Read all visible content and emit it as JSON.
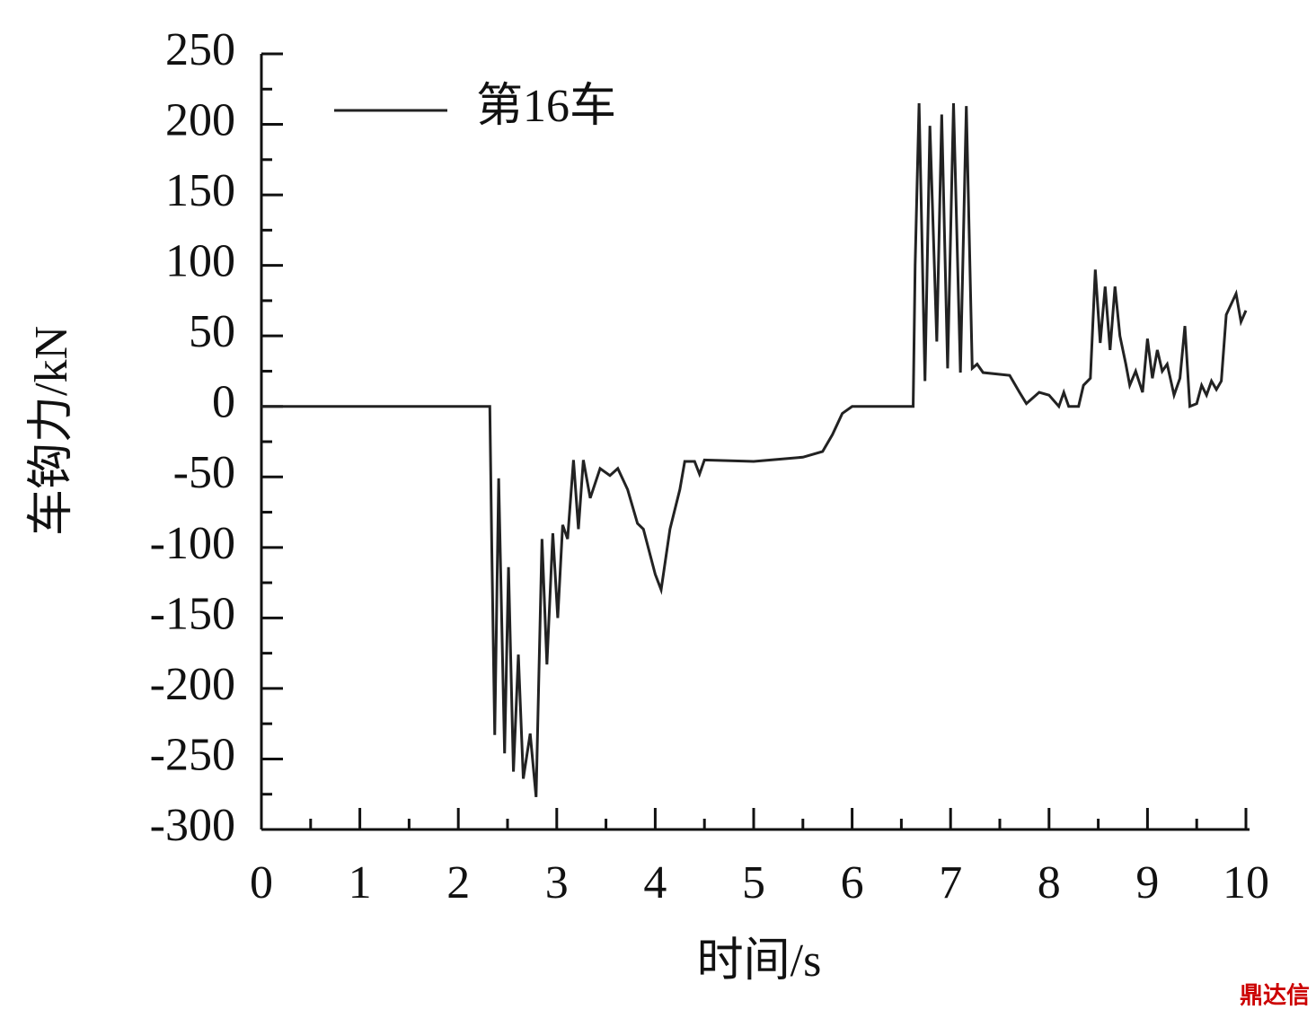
{
  "chart_data": {
    "type": "line",
    "x_label": "时间/s",
    "y_label": "车钩力/kN",
    "xlim": [
      0,
      10
    ],
    "xticks": [
      0,
      1,
      2,
      3,
      4,
      5,
      6,
      7,
      8,
      9,
      10
    ],
    "ylim": [
      -300,
      250
    ],
    "yticks": [
      -300,
      -250,
      -200,
      -150,
      -100,
      -50,
      0,
      50,
      100,
      150,
      200,
      250
    ],
    "x": [
      0,
      2.32,
      2.34,
      2.37,
      2.41,
      2.47,
      2.51,
      2.56,
      2.61,
      2.66,
      2.73,
      2.79,
      2.85,
      2.9,
      2.96,
      3.01,
      3.06,
      3.11,
      3.17,
      3.22,
      3.27,
      3.34,
      3.44,
      3.54,
      3.62,
      3.72,
      3.82,
      3.88,
      4.0,
      4.06,
      4.15,
      4.25,
      4.3,
      4.4,
      4.45,
      4.5,
      5.0,
      5.5,
      5.7,
      5.8,
      5.9,
      6.0,
      6.62,
      6.64,
      6.68,
      6.74,
      6.79,
      6.86,
      6.91,
      6.97,
      7.03,
      7.1,
      7.16,
      7.22,
      7.27,
      7.33,
      7.6,
      7.7,
      7.77,
      7.9,
      8.0,
      8.1,
      8.15,
      8.2,
      8.3,
      8.35,
      8.42,
      8.47,
      8.52,
      8.57,
      8.62,
      8.67,
      8.72,
      8.78,
      8.82,
      8.88,
      8.95,
      9.0,
      9.05,
      9.1,
      9.15,
      9.2,
      9.27,
      9.33,
      9.38,
      9.43,
      9.5,
      9.55,
      9.6,
      9.65,
      9.7,
      9.75,
      9.8,
      9.9,
      9.95,
      10.0
    ],
    "series": [
      {
        "name": "第16车",
        "color": "#222222",
        "values": [
          0,
          0,
          -100,
          -233,
          -51,
          -246,
          -114,
          -259,
          -176,
          -264,
          -232,
          -277,
          -94,
          -183,
          -90,
          -150,
          -84,
          -94,
          -38,
          -87,
          -38,
          -65,
          -44,
          -49,
          -44,
          -59,
          -83,
          -87,
          -119,
          -130,
          -87,
          -59,
          -39,
          -39,
          -48,
          -38,
          -39,
          -36,
          -32,
          -20,
          -5,
          0,
          0,
          100,
          215,
          18,
          199,
          46,
          207,
          27,
          215,
          24,
          213,
          27,
          30,
          24,
          22,
          10,
          2,
          10,
          8,
          0,
          10,
          0,
          0,
          15,
          20,
          97,
          45,
          85,
          40,
          85,
          50,
          30,
          15,
          25,
          10,
          48,
          20,
          40,
          25,
          30,
          8,
          20,
          57,
          0,
          2,
          15,
          8,
          18,
          12,
          18,
          65,
          80,
          60,
          68
        ]
      }
    ],
    "legend": "upper-left",
    "watermark": "鼎达信"
  }
}
